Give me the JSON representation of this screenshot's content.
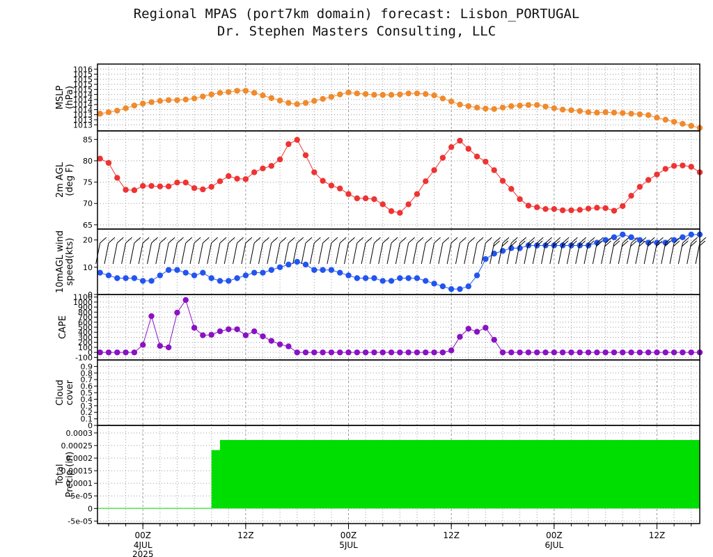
{
  "header": {
    "title": "Regional MPAS (port7km domain) forecast: Lisbon_PORTUGAL",
    "subtitle": "Dr. Stephen Masters Consulting, LLC"
  },
  "colors": {
    "mslp": "#f08a2c",
    "temp": "#ee3333",
    "wind": "#2255ee",
    "cape": "#8a11c4",
    "precip": "#00dd00",
    "grid": "#999999",
    "frame": "#000000"
  },
  "chart_data": {
    "type": "line",
    "time_axis": {
      "hours_from_start": [
        -5,
        7,
        19,
        31,
        43,
        55,
        67,
        79,
        87
      ],
      "ticks": [
        {
          "hour": 0,
          "label": "00Z"
        },
        {
          "hour": 12,
          "label": "12Z"
        },
        {
          "hour": 24,
          "label": "00Z"
        },
        {
          "hour": 36,
          "label": "12Z"
        },
        {
          "hour": 48,
          "label": "00Z"
        },
        {
          "hour": 60,
          "label": "12Z"
        }
      ],
      "date_labels": [
        {
          "hour": 0,
          "lines": [
            "4JUL",
            "2025"
          ]
        },
        {
          "hour": 24,
          "lines": [
            "5JUL"
          ]
        },
        {
          "hour": 48,
          "lines": [
            "6JUL"
          ]
        }
      ],
      "range": [
        -5.3,
        65.0
      ]
    },
    "panels": [
      {
        "id": "mslp",
        "ylabel": [
          "MSLP",
          "(hPa)"
        ],
        "ylim": [
          1012.7,
          1016.0
        ],
        "yticks": [
          1013,
          1013.25,
          1013.5,
          1013.75,
          1014,
          1014.25,
          1014.5,
          1014.75,
          1015,
          1015.25,
          1015.5,
          1015.75
        ],
        "ytick_labels": [
          "1013",
          "1013",
          "1013",
          "1014",
          "1014",
          "1014",
          "1014",
          "1015",
          "1015",
          "1015",
          "1015",
          "1016"
        ],
        "values": [
          1013.55,
          1013.62,
          1013.7,
          1013.82,
          1013.95,
          1014.05,
          1014.12,
          1014.18,
          1014.22,
          1014.22,
          1014.25,
          1014.3,
          1014.4,
          1014.5,
          1014.58,
          1014.62,
          1014.68,
          1014.68,
          1014.58,
          1014.45,
          1014.32,
          1014.2,
          1014.08,
          1014.02,
          1014.08,
          1014.18,
          1014.28,
          1014.38,
          1014.5,
          1014.6,
          1014.55,
          1014.52,
          1014.48,
          1014.48,
          1014.48,
          1014.5,
          1014.55,
          1014.55,
          1014.52,
          1014.45,
          1014.3,
          1014.15,
          1014.0,
          1013.92,
          1013.85,
          1013.8,
          1013.78,
          1013.85,
          1013.92,
          1013.95,
          1013.98,
          1013.98,
          1013.9,
          1013.82,
          1013.75,
          1013.72,
          1013.68,
          1013.62,
          1013.6,
          1013.62,
          1013.6,
          1013.58,
          1013.55,
          1013.52,
          1013.48,
          1013.35,
          1013.25,
          1013.15,
          1013.05,
          1012.95,
          1012.85
        ]
      },
      {
        "id": "temp",
        "ylabel": [
          "2m AGL",
          "(deg F)"
        ],
        "ylim": [
          64.0,
          87.0
        ],
        "yticks": [
          65,
          70,
          75,
          80,
          85
        ],
        "ytick_labels": [
          "65",
          "70",
          "75",
          "80",
          "85"
        ],
        "values": [
          80.5,
          79.5,
          76.0,
          73.2,
          73.1,
          74.1,
          74.1,
          74.0,
          74.0,
          74.9,
          74.9,
          73.6,
          73.3,
          73.9,
          75.2,
          76.4,
          75.8,
          75.7,
          77.3,
          78.2,
          78.8,
          80.3,
          83.9,
          84.9,
          81.3,
          77.3,
          75.3,
          74.2,
          73.5,
          72.2,
          71.2,
          71.2,
          71.0,
          69.8,
          68.2,
          67.8,
          69.8,
          72.2,
          75.2,
          77.8,
          80.7,
          83.2,
          84.7,
          82.8,
          81.0,
          79.8,
          77.8,
          75.3,
          73.4,
          71.0,
          69.5,
          69.1,
          68.7,
          68.7,
          68.4,
          68.4,
          68.5,
          68.8,
          69.0,
          68.9,
          68.3,
          69.4,
          71.8,
          73.9,
          75.5,
          76.8,
          78.1,
          78.8,
          78.9,
          78.6,
          77.3
        ]
      },
      {
        "id": "wind",
        "ylabel": [
          "10mAGL wind",
          "speed(kts)"
        ],
        "ylim": [
          0.0,
          24.0
        ],
        "yticks": [
          0,
          10,
          20
        ],
        "ytick_labels": [
          "0",
          "10",
          "20"
        ],
        "values": [
          8,
          7,
          6,
          6,
          6,
          5,
          5,
          7,
          9,
          9,
          8,
          7,
          8,
          6,
          5,
          5,
          6,
          7,
          8,
          8,
          9,
          10,
          11,
          12,
          11,
          9,
          9,
          9,
          8,
          7,
          6,
          6,
          6,
          5,
          5,
          6,
          6,
          6,
          5,
          4,
          3,
          2,
          2,
          3,
          7,
          13,
          15,
          16,
          17,
          17,
          18,
          18,
          18,
          18,
          18,
          18,
          18,
          18,
          19,
          20,
          21,
          22,
          21,
          20,
          19,
          19,
          19,
          20,
          21,
          22,
          22
        ]
      },
      {
        "id": "cape",
        "ylabel": [
          "CAPE"
        ],
        "ylim": [
          -150,
          1150
        ],
        "yticks": [
          -100,
          0,
          100,
          200,
          300,
          400,
          500,
          600,
          700,
          800,
          900,
          1000,
          1100
        ],
        "ytick_labels": [
          "-100",
          "0",
          "100",
          "200",
          "300",
          "400",
          "500",
          "600",
          "700",
          "800",
          "900",
          "1000",
          "1100"
        ],
        "values": [
          0,
          0,
          0,
          0,
          0,
          150,
          720,
          130,
          100,
          790,
          1040,
          490,
          340,
          350,
          420,
          460,
          460,
          340,
          420,
          320,
          230,
          160,
          120,
          0,
          0,
          0,
          0,
          0,
          0,
          0,
          0,
          0,
          0,
          0,
          0,
          0,
          0,
          0,
          0,
          0,
          0,
          40,
          310,
          470,
          410,
          490,
          250,
          0,
          0,
          0,
          0,
          0,
          0,
          0,
          0,
          0,
          0,
          0,
          0,
          0,
          0,
          0,
          0,
          0,
          0,
          0,
          0,
          0,
          0,
          0,
          0
        ]
      },
      {
        "id": "cloud",
        "ylabel": [
          "Cloud",
          "cover"
        ],
        "ylim": [
          0.0,
          1.0
        ],
        "yticks": [
          0,
          0.1,
          0.2,
          0.3,
          0.4,
          0.5,
          0.6,
          0.7,
          0.8,
          0.9
        ],
        "ytick_labels": [
          "0",
          "0.1",
          "0.2",
          "0.3",
          "0.4",
          "0.5",
          "0.6",
          "0.7",
          "0.8",
          "0.9"
        ],
        "values": []
      },
      {
        "id": "precip",
        "ylabel": [
          "Total",
          "Precip (in)"
        ],
        "ylim": [
          -6e-05,
          0.00033
        ],
        "yticks": [
          -5e-05,
          0,
          5e-05,
          0.0001,
          0.00015,
          0.0002,
          0.00025,
          0.0003
        ],
        "ytick_labels": [
          "-5e-05",
          "0",
          "5e-05",
          "0.0001",
          "0.00015",
          "0.0002",
          "0.00025",
          "0.0003"
        ],
        "steps": [
          {
            "from": -5.3,
            "to": 8.0,
            "value": 2e-06
          },
          {
            "from": 8.0,
            "to": 9.0,
            "value": 0.000232
          },
          {
            "from": 9.0,
            "to": 65.0,
            "value": 0.000272
          }
        ]
      }
    ]
  }
}
